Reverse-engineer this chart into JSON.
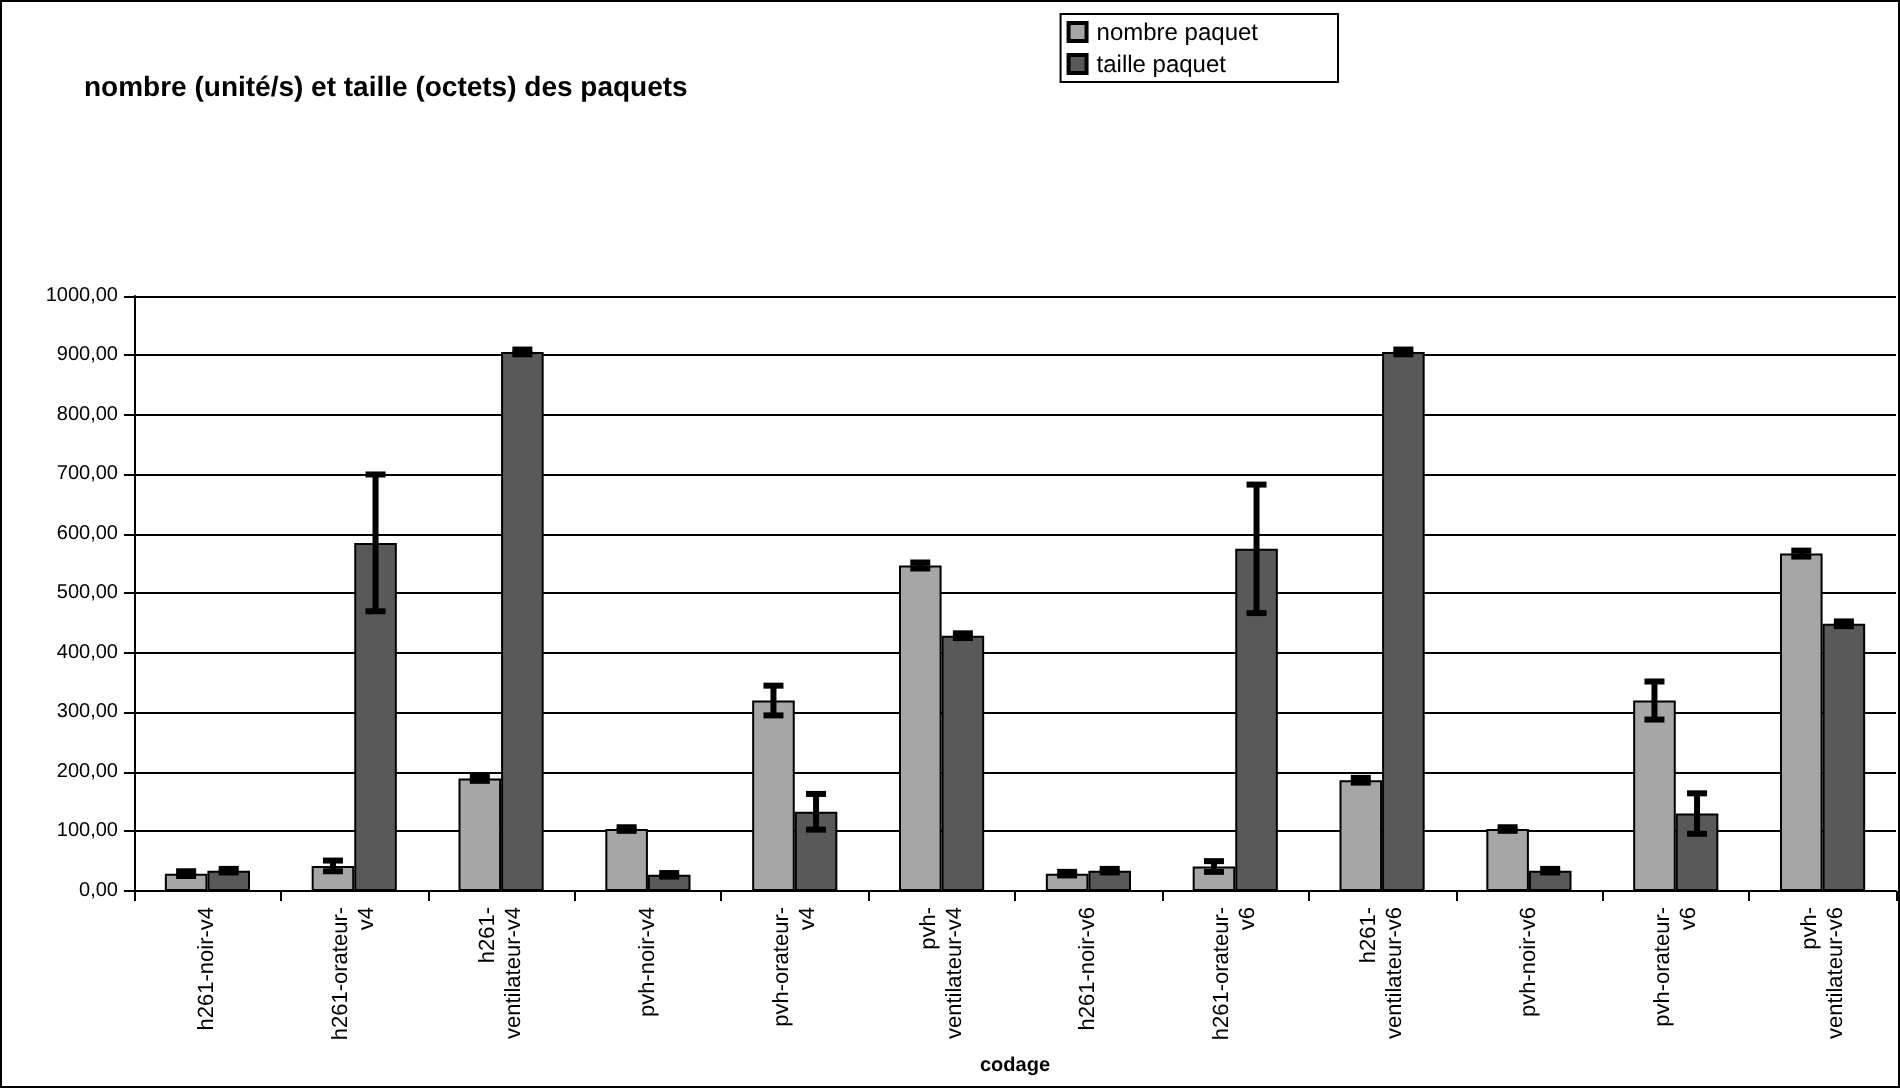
{
  "chart_data": {
    "type": "bar",
    "title": "nombre (unité/s) et taille (octets) des paquets",
    "xlabel": "codage",
    "categories": [
      "h261-noir-v4",
      "h261-orateur-v4",
      "h261-ventilateur-v4",
      "pvh-noir-v4",
      "pvh-orateur-v4",
      "pvh-ventilateur-v4",
      "h261-noir-v6",
      "h261-orateur-v6",
      "h261-ventilateur-v6",
      "pvh-noir-v6",
      "pvh-orateur-v6",
      "pvh-ventilateur-v6"
    ],
    "series": [
      {
        "name": "nombre paquet",
        "color": "#a6a6a6",
        "values": [
          29,
          42,
          189,
          104,
          320,
          547,
          29,
          41,
          186,
          104,
          320,
          567
        ],
        "errors": [
          4,
          9,
          4,
          3,
          25,
          5,
          3,
          9,
          4,
          3,
          32,
          5
        ]
      },
      {
        "name": "taille paquet",
        "color": "#595959",
        "values": [
          34,
          585,
          906,
          27,
          133,
          429,
          34,
          575,
          906,
          34,
          130,
          449
        ],
        "errors": [
          3,
          115,
          4,
          3,
          30,
          4,
          3,
          108,
          4,
          3,
          34,
          4
        ]
      }
    ],
    "ylim": [
      0,
      1000
    ],
    "yticks": [
      {
        "value": 0,
        "label": "0,00"
      },
      {
        "value": 100,
        "label": "100,00"
      },
      {
        "value": 200,
        "label": "200,00"
      },
      {
        "value": 300,
        "label": "300,00"
      },
      {
        "value": 400,
        "label": "400,00"
      },
      {
        "value": 500,
        "label": "500,00"
      },
      {
        "value": 600,
        "label": "600,00"
      },
      {
        "value": 700,
        "label": "700,00"
      },
      {
        "value": 800,
        "label": "800,00"
      },
      {
        "value": 900,
        "label": "900,00"
      },
      {
        "value": 1000,
        "label": "1000,00"
      }
    ],
    "grid": "y",
    "legend": "top right"
  }
}
